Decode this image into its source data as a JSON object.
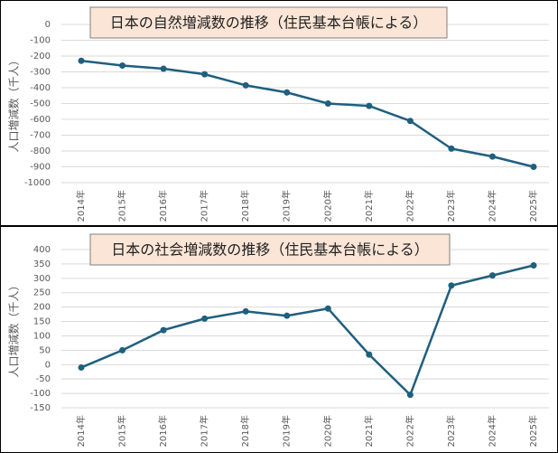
{
  "chart_data": [
    {
      "type": "line",
      "title": "日本の自然増減数の推移（住民基本台帳による）",
      "y_label": "人口増減数（千人）",
      "categories": [
        "2014年",
        "2015年",
        "2016年",
        "2017年",
        "2018年",
        "2019年",
        "2020年",
        "2021年",
        "2022年",
        "2023年",
        "2024年",
        "2025年"
      ],
      "values": [
        -230,
        -260,
        -280,
        -315,
        -385,
        -430,
        -500,
        -515,
        -610,
        -785,
        -835,
        -900
      ],
      "color": "#1f5f7f",
      "ylim": [
        -1000,
        0
      ],
      "yticks": [
        -1000,
        -900,
        -800,
        -700,
        -600,
        -500,
        -400,
        -300,
        -200,
        -100,
        0
      ],
      "grid": true
    },
    {
      "type": "line",
      "title": "日本の社会増減数の推移（住民基本台帳による）",
      "y_label": "人口増減数（千人）",
      "categories": [
        "2014年",
        "2015年",
        "2016年",
        "2017年",
        "2018年",
        "2019年",
        "2020年",
        "2021年",
        "2022年",
        "2023年",
        "2024年",
        "2025年"
      ],
      "values": [
        -10,
        50,
        120,
        160,
        185,
        170,
        195,
        35,
        -105,
        275,
        310,
        345
      ],
      "color": "#1f5f7f",
      "ylim": [
        -150,
        400
      ],
      "yticks": [
        -150,
        -100,
        -50,
        0,
        50,
        100,
        150,
        200,
        250,
        300,
        350,
        400
      ],
      "grid": true
    }
  ]
}
